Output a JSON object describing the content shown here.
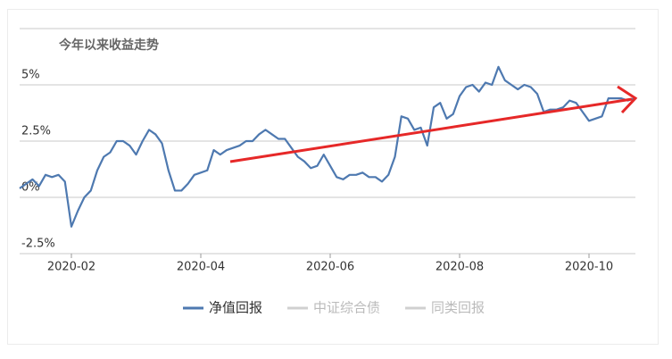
{
  "chart_data": {
    "type": "line",
    "title": "今年以来收益走势",
    "categories": [
      null,
      null,
      null,
      null,
      null,
      null,
      null,
      null,
      "2020-02",
      null,
      null,
      null,
      null,
      null,
      null,
      null,
      null,
      null,
      null,
      null,
      null,
      null,
      null,
      null,
      null,
      null,
      null,
      null,
      "2020-04",
      null,
      null,
      null,
      null,
      null,
      null,
      null,
      null,
      null,
      null,
      null,
      null,
      null,
      null,
      null,
      null,
      null,
      null,
      null,
      "2020-06",
      null,
      null,
      null,
      null,
      null,
      null,
      null,
      null,
      null,
      null,
      null,
      null,
      null,
      null,
      null,
      null,
      null,
      null,
      null,
      "2020-08",
      null,
      null,
      null,
      null,
      null,
      null,
      null,
      null,
      null,
      null,
      null,
      null,
      null,
      null,
      null,
      null,
      null,
      null,
      null,
      "2020-10",
      null,
      null,
      null,
      null,
      null,
      null,
      null
    ],
    "series": [
      {
        "name": "净值回报",
        "color": "#4e79b0",
        "values": [
          0.4,
          0.6,
          0.8,
          0.5,
          1.0,
          0.9,
          1.0,
          0.7,
          -1.3,
          -0.6,
          0.0,
          0.3,
          1.2,
          1.8,
          2.0,
          2.5,
          2.5,
          2.3,
          1.9,
          2.5,
          3.0,
          2.8,
          2.4,
          1.2,
          0.3,
          0.3,
          0.6,
          1.0,
          1.1,
          1.2,
          2.1,
          1.9,
          2.1,
          2.2,
          2.3,
          2.5,
          2.5,
          2.8,
          3.0,
          2.8,
          2.6,
          2.6,
          2.2,
          1.8,
          1.6,
          1.3,
          1.4,
          1.9,
          1.4,
          0.9,
          0.8,
          1.0,
          1.0,
          1.1,
          0.9,
          0.9,
          0.7,
          1.0,
          1.8,
          3.6,
          3.5,
          3.0,
          3.1,
          2.3,
          4.0,
          4.2,
          3.5,
          3.7,
          4.5,
          4.9,
          5.0,
          4.7,
          5.1,
          5.0,
          5.8,
          5.2,
          5.0,
          4.8,
          5.0,
          4.9,
          4.6,
          3.8,
          3.9,
          3.9,
          4.0,
          4.3,
          4.2,
          3.8,
          3.4,
          3.5,
          3.6,
          4.4,
          4.4,
          4.4,
          4.3,
          4.4
        ]
      }
    ],
    "inactive_legend": [
      {
        "name": "中证综合债",
        "color": "#d0d0d0"
      },
      {
        "name": "同类回报",
        "color": "#d0d0d0"
      }
    ],
    "ylim": [
      -2.5,
      7.5
    ],
    "yticks": [
      {
        "value": 5,
        "label": "5%"
      },
      {
        "value": 2.5,
        "label": "2.5%"
      },
      {
        "value": 0,
        "label": "0%"
      },
      {
        "value": -2.5,
        "label": "-2.5%"
      }
    ],
    "grid": true
  }
}
